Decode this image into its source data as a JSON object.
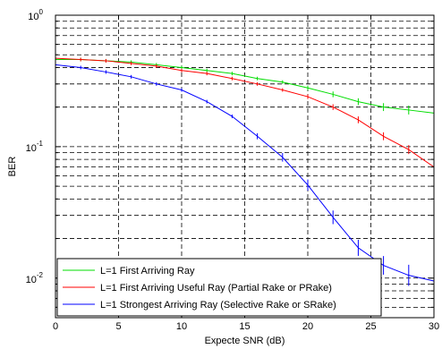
{
  "chart_data": {
    "type": "line",
    "xlabel": "Expecte SNR (dB)",
    "ylabel": "BER",
    "xlim": [
      0,
      30
    ],
    "ylim": [
      0.005,
      1
    ],
    "yscale": "log",
    "grid": true,
    "legend_position": "bottom-left",
    "x_ticks": [
      "0",
      "5",
      "10",
      "15",
      "20",
      "25",
      "30"
    ],
    "y_ticks": [
      {
        "base": "10",
        "exp": "0",
        "value": 1
      },
      {
        "base": "10",
        "exp": "-1",
        "value": 0.1
      },
      {
        "base": "10",
        "exp": "-2",
        "value": 0.01
      }
    ],
    "series": [
      {
        "name": "L=1 First Arriving Ray",
        "color": "#00dd00",
        "x": [
          0,
          2,
          4,
          6,
          8,
          10,
          12,
          14,
          16,
          18,
          20,
          22,
          24,
          26,
          28,
          30
        ],
        "y": [
          0.46,
          0.46,
          0.45,
          0.44,
          0.42,
          0.4,
          0.38,
          0.36,
          0.33,
          0.31,
          0.28,
          0.25,
          0.22,
          0.2,
          0.19,
          0.18
        ]
      },
      {
        "name": "L=1 First Arriving Useful Ray (Partial Rake or PRake)",
        "color": "#ff0000",
        "x": [
          0,
          2,
          4,
          6,
          8,
          10,
          12,
          14,
          16,
          18,
          20,
          22,
          24,
          26,
          28,
          30
        ],
        "y": [
          0.47,
          0.46,
          0.45,
          0.43,
          0.41,
          0.38,
          0.36,
          0.33,
          0.3,
          0.27,
          0.24,
          0.2,
          0.16,
          0.12,
          0.095,
          0.07
        ]
      },
      {
        "name": "L=1 Strongest Arriving Ray (Selective Rake or SRake)",
        "color": "#0000ff",
        "x": [
          0,
          2,
          4,
          6,
          8,
          10,
          12,
          14,
          16,
          18,
          20,
          22,
          24,
          26,
          28,
          30
        ],
        "y": [
          0.42,
          0.4,
          0.37,
          0.34,
          0.3,
          0.27,
          0.22,
          0.17,
          0.12,
          0.083,
          0.051,
          0.029,
          0.017,
          0.0125,
          0.0105,
          0.0095
        ]
      }
    ]
  }
}
